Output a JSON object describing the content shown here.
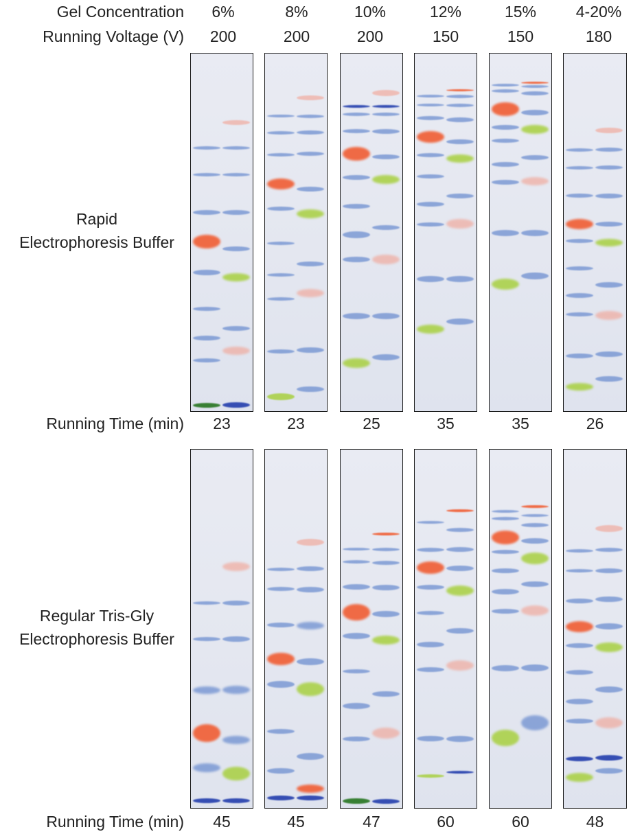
{
  "header": {
    "row1_label": "Gel Concentration",
    "row2_label": "Running Voltage (V)",
    "columns": [
      {
        "concentration": "6%",
        "voltage": "200"
      },
      {
        "concentration": "8%",
        "voltage": "200"
      },
      {
        "concentration": "10%",
        "voltage": "200"
      },
      {
        "concentration": "12%",
        "voltage": "150"
      },
      {
        "concentration": "15%",
        "voltage": "150"
      },
      {
        "concentration": "4-20%",
        "voltage": "180"
      }
    ]
  },
  "sections": [
    {
      "label_line1": "Rapid",
      "label_line2": "Electrophoresis Buffer",
      "time_label": "Running Time (min)",
      "times": [
        "23",
        "23",
        "25",
        "35",
        "35",
        "26"
      ]
    },
    {
      "label_line1": "Regular Tris-Gly",
      "label_line2": "Electrophoresis Buffer",
      "time_label": "Running Time (min)",
      "times": [
        "45",
        "45",
        "47",
        "60",
        "60",
        "48"
      ]
    }
  ],
  "colors": {
    "blue": "#6e8fd0",
    "dark_blue": "#2c46b0",
    "red": "#f0643c",
    "pink": "#f2a090",
    "green": "#a8d040",
    "dark_green": "#2f7a2a"
  }
}
